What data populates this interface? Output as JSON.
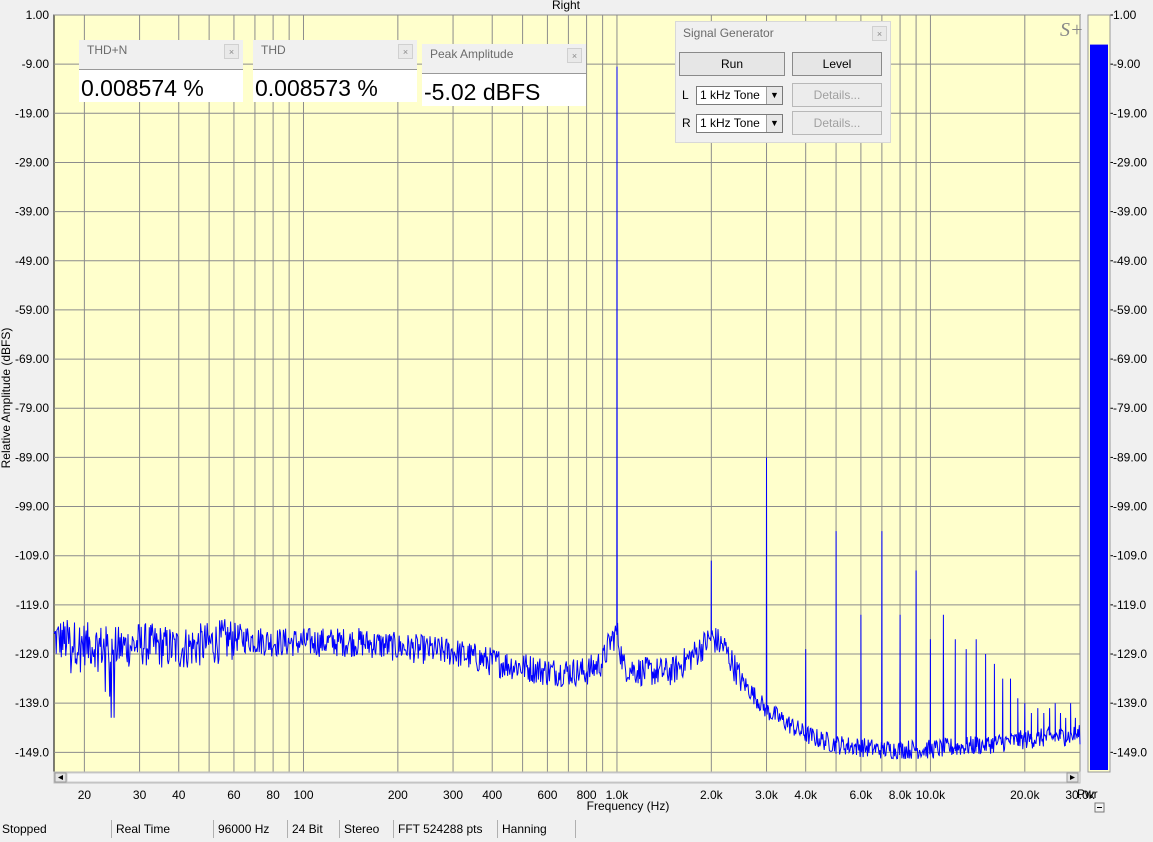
{
  "window": {
    "channel_title": "Right"
  },
  "chart_data": {
    "type": "line",
    "title": "Right",
    "xlabel": "Frequency (Hz)",
    "ylabel": "Relative Amplitude (dBFS)",
    "xscale": "log",
    "xlim": [
      16,
      30000
    ],
    "ylim": [
      -153.0,
      1.0
    ],
    "y_ticks": [
      "1.00",
      "-9.00",
      "-19.00",
      "-29.00",
      "-39.00",
      "-49.00",
      "-59.00",
      "-69.00",
      "-79.00",
      "-89.00",
      "-99.00",
      "-109.0",
      "-119.0",
      "-129.0",
      "-139.0",
      "-149.0"
    ],
    "y_tick_values": [
      1,
      -9,
      -19,
      -29,
      -39,
      -49,
      -59,
      -69,
      -79,
      -89,
      -99,
      -109,
      -119,
      -129,
      -139,
      -149
    ],
    "x_tick_labels": [
      {
        "v": 20,
        "t": "20"
      },
      {
        "v": 30,
        "t": "30"
      },
      {
        "v": 40,
        "t": "40"
      },
      {
        "v": 60,
        "t": "60"
      },
      {
        "v": 80,
        "t": "80"
      },
      {
        "v": 100,
        "t": "100"
      },
      {
        "v": 200,
        "t": "200"
      },
      {
        "v": 300,
        "t": "300"
      },
      {
        "v": 400,
        "t": "400"
      },
      {
        "v": 600,
        "t": "600"
      },
      {
        "v": 800,
        "t": "800"
      },
      {
        "v": 1000,
        "t": "1.0k"
      },
      {
        "v": 2000,
        "t": "2.0k"
      },
      {
        "v": 3000,
        "t": "3.0k"
      },
      {
        "v": 4000,
        "t": "4.0k"
      },
      {
        "v": 6000,
        "t": "6.0k"
      },
      {
        "v": 8000,
        "t": "8.0k"
      },
      {
        "v": 10000,
        "t": "10.0k"
      },
      {
        "v": 20000,
        "t": "20.0k"
      },
      {
        "v": 30000,
        "t": "30.0k"
      }
    ],
    "grid": true,
    "background_color": "#ffffcc",
    "line_color": "#0000ff",
    "noise_floor": [
      [
        16,
        -125
      ],
      [
        20,
        -126
      ],
      [
        25,
        -127
      ],
      [
        30,
        -126
      ],
      [
        40,
        -127
      ],
      [
        50,
        -126
      ],
      [
        60,
        -125
      ],
      [
        80,
        -126
      ],
      [
        100,
        -126
      ],
      [
        150,
        -126
      ],
      [
        200,
        -127
      ],
      [
        300,
        -128
      ],
      [
        400,
        -130
      ],
      [
        500,
        -131
      ],
      [
        600,
        -132
      ],
      [
        700,
        -132
      ],
      [
        800,
        -132
      ],
      [
        900,
        -130
      ],
      [
        950,
        -126
      ],
      [
        1000,
        -124
      ],
      [
        1050,
        -131
      ],
      [
        1200,
        -132
      ],
      [
        1500,
        -132
      ],
      [
        1800,
        -128
      ],
      [
        2000,
        -125
      ],
      [
        2200,
        -127
      ],
      [
        2500,
        -134
      ],
      [
        3000,
        -140
      ],
      [
        4000,
        -145
      ],
      [
        5000,
        -147
      ],
      [
        7000,
        -148
      ],
      [
        10000,
        -148
      ],
      [
        15000,
        -147
      ],
      [
        20000,
        -146
      ],
      [
        30000,
        -145
      ]
    ],
    "peaks": [
      {
        "x": 1000,
        "y": -9.5
      },
      {
        "x": 2000,
        "y": -110
      },
      {
        "x": 3000,
        "y": -89
      },
      {
        "x": 4000,
        "y": -128
      },
      {
        "x": 5000,
        "y": -104
      },
      {
        "x": 6000,
        "y": -121
      },
      {
        "x": 7000,
        "y": -104
      },
      {
        "x": 8000,
        "y": -121
      },
      {
        "x": 9000,
        "y": -112
      },
      {
        "x": 10000,
        "y": -126
      },
      {
        "x": 11000,
        "y": -121
      },
      {
        "x": 12000,
        "y": -126
      },
      {
        "x": 13000,
        "y": -128
      },
      {
        "x": 14000,
        "y": -126
      },
      {
        "x": 15000,
        "y": -129
      },
      {
        "x": 16000,
        "y": -131
      },
      {
        "x": 17000,
        "y": -134
      },
      {
        "x": 18000,
        "y": -134
      },
      {
        "x": 19000,
        "y": -138
      },
      {
        "x": 20000,
        "y": -139
      },
      {
        "x": 21000,
        "y": -141
      },
      {
        "x": 22000,
        "y": -140
      },
      {
        "x": 23000,
        "y": -141
      },
      {
        "x": 24000,
        "y": -140
      },
      {
        "x": 25000,
        "y": -139
      },
      {
        "x": 26000,
        "y": -141
      },
      {
        "x": 27000,
        "y": -142
      },
      {
        "x": 28000,
        "y": -139
      },
      {
        "x": 29000,
        "y": -142
      }
    ]
  },
  "power_bar": {
    "label": "Pwr",
    "level_dbfs": -5.02,
    "color": "#0000ff"
  },
  "readouts": [
    {
      "title": "THD+N",
      "value": "0.008574 %"
    },
    {
      "title": "THD",
      "value": "0.008573 %"
    },
    {
      "title": "Peak Amplitude",
      "value": "-5.02 dBFS"
    }
  ],
  "signal_generator": {
    "title": "Signal Generator",
    "run_label": "Run",
    "level_label": "Level",
    "left_label": "L",
    "right_label": "R",
    "left_signal": "1 kHz Tone",
    "right_signal": "1 kHz Tone",
    "details_label": "Details..."
  },
  "status_bar": {
    "state": "Stopped",
    "mode": "Real Time",
    "sample_rate": "96000 Hz",
    "bit_depth": "24 Bit",
    "channels": "Stereo",
    "fft_size": "FFT 524288 pts",
    "window": "Hanning"
  },
  "icons": {
    "logo": "S+",
    "close": "close-icon",
    "scroll_left": "scroll-left-icon",
    "scroll_right": "scroll-right-icon",
    "dropdown": "chevron-down-icon",
    "minus": "minus-icon"
  }
}
